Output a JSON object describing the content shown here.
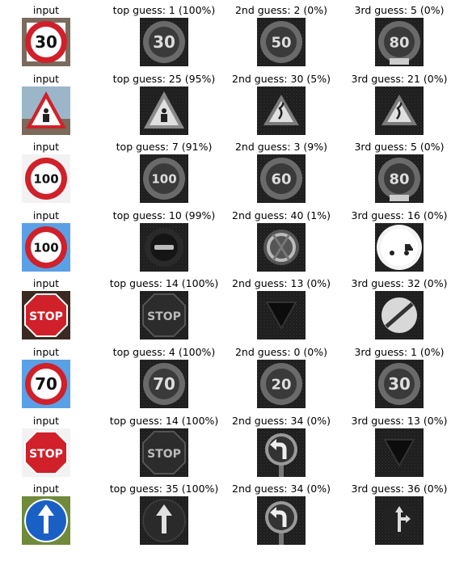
{
  "column_label": "input",
  "rows": [
    {
      "input_sign": "speed-limit-30",
      "guesses": [
        {
          "title": "top guess: 1 (100%)",
          "class_id": 1,
          "prob": 100,
          "sign": "speed-limit-30"
        },
        {
          "title": "2nd guess: 2 (0%)",
          "class_id": 2,
          "prob": 0,
          "sign": "speed-limit-50"
        },
        {
          "title": "3rd guess: 5 (0%)",
          "class_id": 5,
          "prob": 0,
          "sign": "speed-limit-80"
        }
      ]
    },
    {
      "input_sign": "road-work",
      "guesses": [
        {
          "title": "top guess: 25 (95%)",
          "class_id": 25,
          "prob": 95,
          "sign": "road-work"
        },
        {
          "title": "2nd guess: 30 (5%)",
          "class_id": 30,
          "prob": 5,
          "sign": "beware-ice"
        },
        {
          "title": "3rd guess: 21 (0%)",
          "class_id": 21,
          "prob": 0,
          "sign": "double-curve"
        }
      ]
    },
    {
      "input_sign": "speed-limit-100",
      "guesses": [
        {
          "title": "top guess: 7 (91%)",
          "class_id": 7,
          "prob": 91,
          "sign": "speed-limit-100"
        },
        {
          "title": "2nd guess: 3 (9%)",
          "class_id": 3,
          "prob": 9,
          "sign": "speed-limit-60"
        },
        {
          "title": "3rd guess: 5 (0%)",
          "class_id": 5,
          "prob": 0,
          "sign": "speed-limit-80"
        }
      ]
    },
    {
      "input_sign": "speed-limit-100-blue",
      "guesses": [
        {
          "title": "top guess: 10 (99%)",
          "class_id": 10,
          "prob": 99,
          "sign": "no-passing-trucks"
        },
        {
          "title": "2nd guess: 40 (1%)",
          "class_id": 40,
          "prob": 1,
          "sign": "roundabout"
        },
        {
          "title": "3rd guess: 16 (0%)",
          "class_id": 16,
          "prob": 0,
          "sign": "trucks-prohibited"
        }
      ]
    },
    {
      "input_sign": "stop",
      "guesses": [
        {
          "title": "top guess: 14 (100%)",
          "class_id": 14,
          "prob": 100,
          "sign": "stop"
        },
        {
          "title": "2nd guess: 13 (0%)",
          "class_id": 13,
          "prob": 0,
          "sign": "yield"
        },
        {
          "title": "3rd guess: 32 (0%)",
          "class_id": 32,
          "prob": 0,
          "sign": "end-of-limits"
        }
      ]
    },
    {
      "input_sign": "speed-limit-70",
      "guesses": [
        {
          "title": "top guess: 4 (100%)",
          "class_id": 4,
          "prob": 100,
          "sign": "speed-limit-70"
        },
        {
          "title": "2nd guess: 0 (0%)",
          "class_id": 0,
          "prob": 0,
          "sign": "speed-limit-20"
        },
        {
          "title": "3rd guess: 1 (0%)",
          "class_id": 1,
          "prob": 0,
          "sign": "speed-limit-30"
        }
      ]
    },
    {
      "input_sign": "stop-octagon",
      "guesses": [
        {
          "title": "top guess: 14 (100%)",
          "class_id": 14,
          "prob": 100,
          "sign": "stop"
        },
        {
          "title": "2nd guess: 34 (0%)",
          "class_id": 34,
          "prob": 0,
          "sign": "turn-left-ahead"
        },
        {
          "title": "3rd guess: 13 (0%)",
          "class_id": 13,
          "prob": 0,
          "sign": "yield"
        }
      ]
    },
    {
      "input_sign": "ahead-only",
      "guesses": [
        {
          "title": "top guess: 35 (100%)",
          "class_id": 35,
          "prob": 100,
          "sign": "ahead-only"
        },
        {
          "title": "2nd guess: 34 (0%)",
          "class_id": 34,
          "prob": 0,
          "sign": "turn-left-ahead"
        },
        {
          "title": "3rd guess: 36 (0%)",
          "class_id": 36,
          "prob": 0,
          "sign": "straight-or-right"
        }
      ]
    }
  ],
  "chart_data": {
    "type": "table",
    "columns": [
      "input",
      "top guess",
      "2nd guess",
      "3rd guess"
    ],
    "rows": [
      {
        "top": [
          1,
          100
        ],
        "second": [
          2,
          0
        ],
        "third": [
          5,
          0
        ]
      },
      {
        "top": [
          25,
          95
        ],
        "second": [
          30,
          5
        ],
        "third": [
          21,
          0
        ]
      },
      {
        "top": [
          7,
          91
        ],
        "second": [
          3,
          9
        ],
        "third": [
          5,
          0
        ]
      },
      {
        "top": [
          10,
          99
        ],
        "second": [
          40,
          1
        ],
        "third": [
          16,
          0
        ]
      },
      {
        "top": [
          14,
          100
        ],
        "second": [
          13,
          0
        ],
        "third": [
          32,
          0
        ]
      },
      {
        "top": [
          4,
          100
        ],
        "second": [
          0,
          0
        ],
        "third": [
          1,
          0
        ]
      },
      {
        "top": [
          14,
          100
        ],
        "second": [
          34,
          0
        ],
        "third": [
          13,
          0
        ]
      },
      {
        "top": [
          35,
          100
        ],
        "second": [
          34,
          0
        ],
        "third": [
          36,
          0
        ]
      }
    ]
  },
  "colors": {
    "sign_red": "#d0202a",
    "sign_blue": "#1a5fc4",
    "sky_blue": "#5aa0e6",
    "gray_bg": "#1c1c1c"
  }
}
